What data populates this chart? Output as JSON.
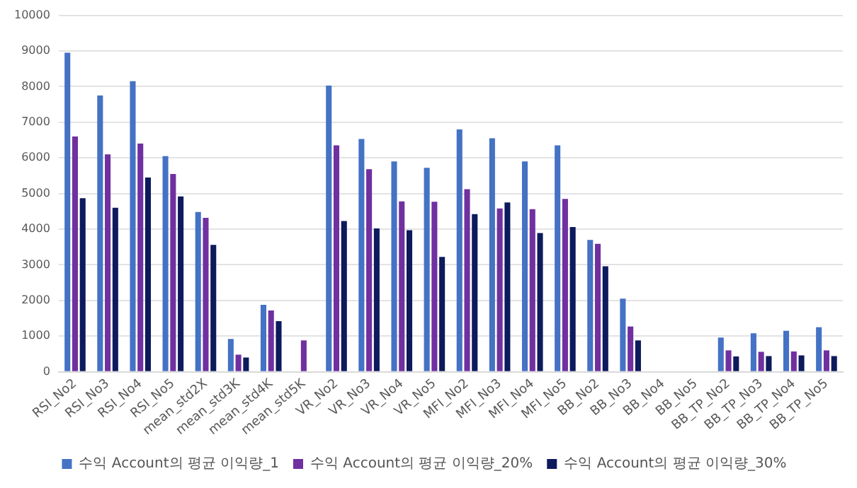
{
  "chart_data": {
    "type": "bar",
    "categories": [
      "RSI_No2",
      "RSI_No3",
      "RSI_No4",
      "RSI_No5",
      "mean_std2X",
      "mean_std3K",
      "mean_std4K",
      "mean_std5K",
      "VR_No2",
      "VR_No3",
      "VR_No4",
      "VR_No5",
      "MFI_No2",
      "MFI_No3",
      "MFI_No4",
      "MFI_No5",
      "BB_No2",
      "BB_No3",
      "BB_No4",
      "BB_No5",
      "BB_TP_No2",
      "BB_TP_No3",
      "BB_TP_No4",
      "BB_TP_No5"
    ],
    "series": [
      {
        "name": "수익 Account의 평균 이익량_1",
        "color": "#4472c4",
        "values": [
          8950,
          7750,
          8150,
          6050,
          4480,
          920,
          1880,
          null,
          8030,
          6530,
          5900,
          5720,
          6800,
          6550,
          5900,
          6350,
          3700,
          2050,
          null,
          null,
          960,
          1080,
          1150,
          1250
        ]
      },
      {
        "name": "수익 Account의 평균 이익량_20%",
        "color": "#7030a0",
        "values": [
          6600,
          6100,
          6400,
          5550,
          4320,
          480,
          1720,
          880,
          6350,
          5680,
          4780,
          4770,
          5120,
          4580,
          4560,
          4850,
          3590,
          1270,
          null,
          null,
          600,
          560,
          570,
          600
        ]
      },
      {
        "name": "수익 Account의 평균 이익량_30%",
        "color": "#0d1a5c",
        "values": [
          4870,
          4600,
          5450,
          4920,
          3560,
          400,
          1420,
          null,
          4230,
          4020,
          3970,
          3220,
          4420,
          4750,
          3890,
          4060,
          2960,
          880,
          null,
          null,
          430,
          440,
          460,
          440
        ]
      }
    ],
    "ylim": [
      0,
      10000
    ],
    "yticks": [
      0,
      1000,
      2000,
      3000,
      4000,
      5000,
      6000,
      7000,
      8000,
      9000,
      10000
    ],
    "grid": "y",
    "legend": "bottom"
  }
}
